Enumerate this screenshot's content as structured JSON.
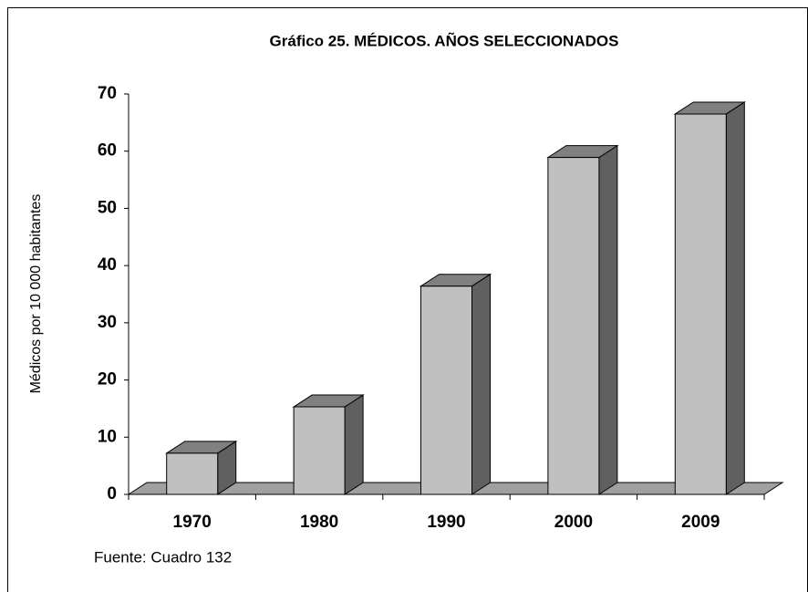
{
  "chart_data": {
    "type": "bar3d",
    "title": "Gráfico 25. MÉDICOS. AÑOS SELECCIONADOS",
    "y_label": "Médicos por 10 000 habitantes",
    "source": "Fuente: Cuadro 132",
    "categories": [
      "1970",
      "1980",
      "1990",
      "2000",
      "2009"
    ],
    "values": [
      7.2,
      15.3,
      36.4,
      58.9,
      66.5
    ],
    "color": "#c0c0c0",
    "ylim": [
      0,
      70
    ],
    "yticks": [
      0,
      10,
      20,
      30,
      40,
      50,
      60,
      70
    ],
    "grid": false
  }
}
